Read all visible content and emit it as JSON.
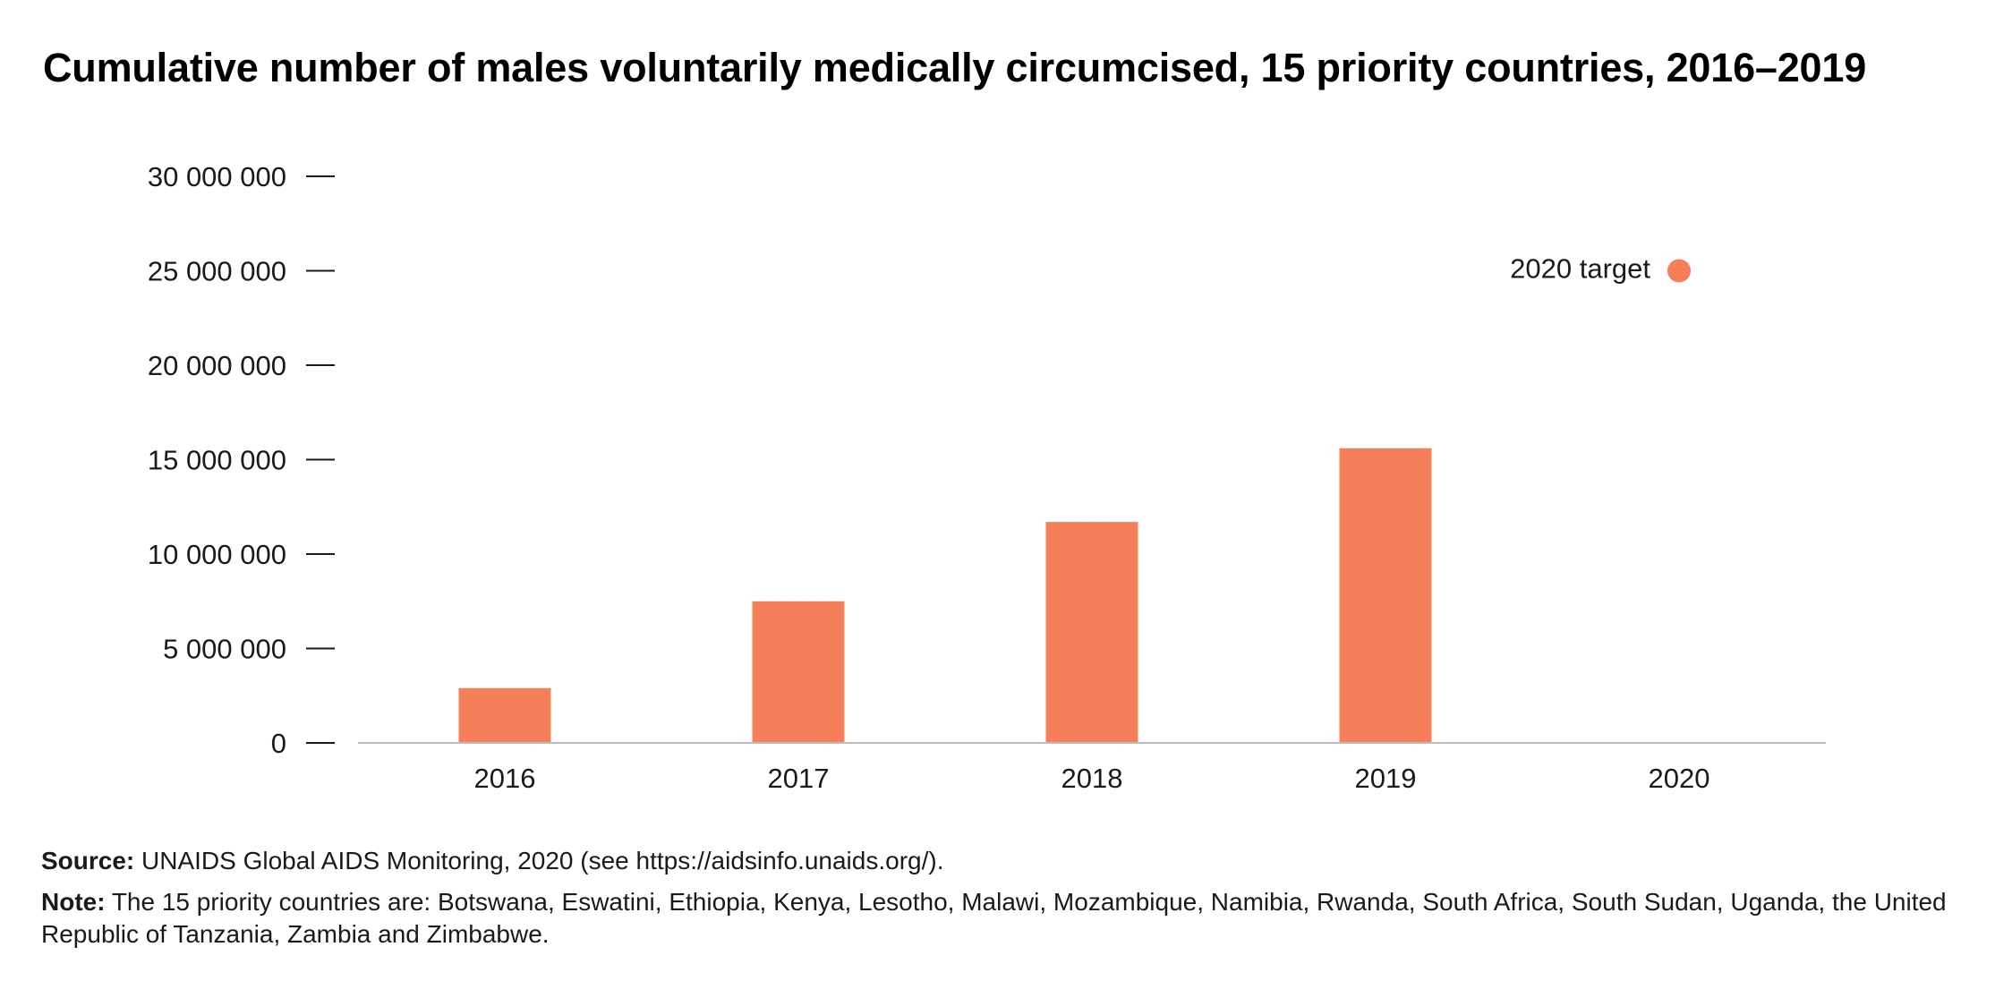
{
  "title": "Cumulative number of males voluntarily medically circumcised, 15 priority countries, 2016–2019",
  "source": {
    "label": "Source:",
    "text": "UNAIDS Global AIDS Monitoring, 2020 (see https://aidsinfo.unaids.org/)."
  },
  "note": {
    "label": "Note:",
    "text": "The 15 priority countries are: Botswana, Eswatini, Ethiopia, Kenya, Lesotho, Malawi, Mozambique, Namibia, Rwanda, South Africa, South Sudan, Uganda, the United Republic of Tanzania, Zambia and Zimbabwe."
  },
  "chart_data": {
    "type": "bar",
    "categories": [
      "2016",
      "2017",
      "2018",
      "2019",
      "2020"
    ],
    "values": [
      2900000,
      7500000,
      11700000,
      15600000,
      null
    ],
    "ylim": [
      0,
      30000000
    ],
    "yticks": [
      0,
      5000000,
      10000000,
      15000000,
      20000000,
      25000000,
      30000000
    ],
    "ytick_labels": [
      "0",
      "5 000 000",
      "10 000 000",
      "15 000 000",
      "20 000 000",
      "25 000 000",
      "30 000 000"
    ],
    "target": {
      "label": "2020 target",
      "category": "2020",
      "value": 25000000
    },
    "grid": false,
    "colors": {
      "bar": "#f47f58",
      "target": "#f47f58",
      "axis": "#bdbdbd",
      "tick": "#1a1a1a",
      "text": "#1a1a1a"
    }
  }
}
